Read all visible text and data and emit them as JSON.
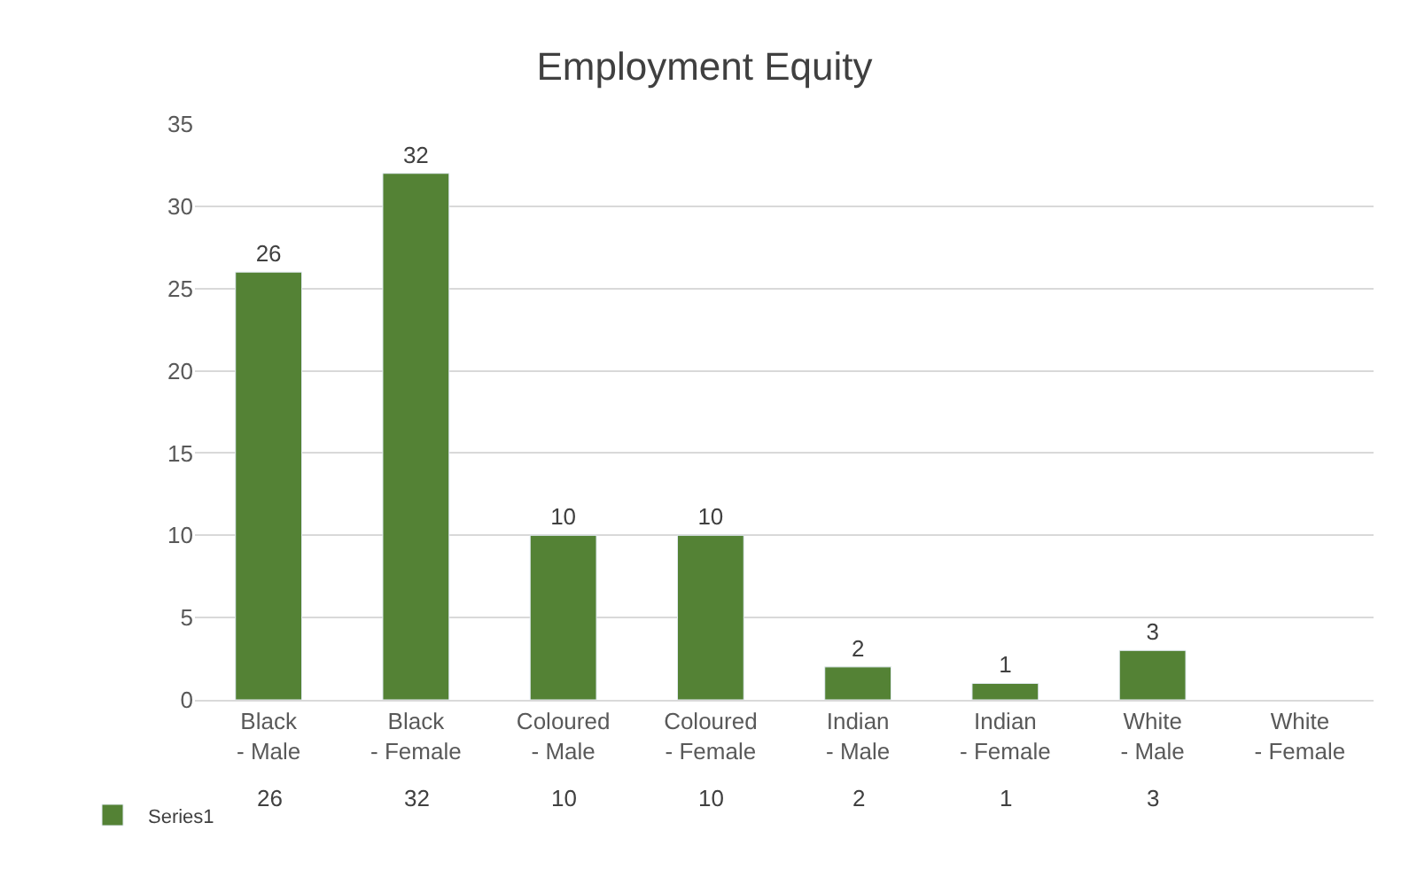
{
  "chart_data": {
    "type": "bar",
    "title": "Employment Equity",
    "categories": [
      "Black - Male",
      "Black - Female",
      "Coloured - Male",
      "Coloured - Female",
      "Indian - Male",
      "Indian - Female",
      "White - Male",
      "White - Female"
    ],
    "series": [
      {
        "name": "Series1",
        "color": "#548235",
        "values": [
          26,
          32,
          10,
          10,
          2,
          1,
          3,
          null
        ],
        "value_labels": [
          "26",
          "32",
          "10",
          "10",
          "2",
          "1",
          "3",
          null
        ]
      }
    ],
    "ylim": [
      0,
      35
    ],
    "yticks": [
      0,
      5,
      10,
      15,
      20,
      25,
      30,
      35
    ],
    "grid": "y",
    "legend": "bottom left",
    "annotations": [
      "26",
      "32",
      "10",
      "10",
      "2",
      "1",
      "3"
    ]
  }
}
